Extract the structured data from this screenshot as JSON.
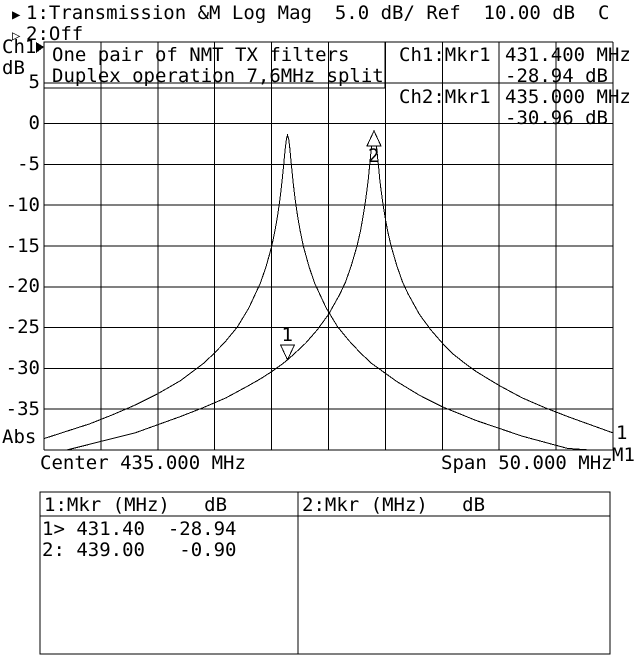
{
  "header": {
    "line1_indicator": "▶",
    "line1": "1:Transmission &M Log Mag  5.0 dB/ Ref  10.00 dB  C",
    "line2_indicator": "▷",
    "line2": "2:Off"
  },
  "axis": {
    "channel": "Ch1",
    "unit": "dB",
    "y_ticks": [
      "5",
      "0",
      "-5",
      "-10",
      "-15",
      "-20",
      "-25",
      "-30",
      "-35"
    ],
    "bottom_left_label": "Abs",
    "center_label": "Center 435.000 MHz",
    "span_label": "Span 50.000 MHz"
  },
  "annotation": {
    "line1": "One pair of NMT TX filters",
    "line2": "Duplex operation 7,6MHz split"
  },
  "marker_readout": [
    {
      "label": "Ch1:Mkr1",
      "freq": "431.400 MHz",
      "value": "-28.94 dB"
    },
    {
      "label": "Ch2:Mkr1",
      "freq": "435.000 MHz",
      "value": "-30.96 dB"
    }
  ],
  "trace_edge_labels": {
    "data": "1",
    "memory": "M1"
  },
  "marker_table": {
    "left_header": "1:Mkr (MHz)   dB",
    "right_header": "2:Mkr (MHz)   dB",
    "left_rows": [
      "1> 431.40  -28.94",
      "2: 439.00   -0.90"
    ],
    "right_rows": []
  },
  "chart_data": {
    "type": "line",
    "title": "",
    "x_range": [
      410,
      460
    ],
    "y_range": [
      -40,
      10
    ],
    "x_divisions": 10,
    "y_divisions": 10,
    "x_unit": "MHz",
    "y_unit": "dB",
    "reference_level_dB": 10.0,
    "scale_per_div_dB": 5.0,
    "center_MHz": 435.0,
    "span_MHz": 50.0,
    "series": [
      {
        "name": "1",
        "points": [
          [
            410,
            -40.6
          ],
          [
            412,
            -40.0
          ],
          [
            414,
            -39.3
          ],
          [
            416,
            -38.6
          ],
          [
            418,
            -37.9
          ],
          [
            420,
            -36.9
          ],
          [
            422,
            -35.9
          ],
          [
            424,
            -34.8
          ],
          [
            426,
            -33.6
          ],
          [
            428,
            -32.1
          ],
          [
            429,
            -31.3
          ],
          [
            430,
            -30.4
          ],
          [
            431,
            -29.4
          ],
          [
            431.4,
            -28.94
          ],
          [
            432,
            -28.2
          ],
          [
            433,
            -26.9
          ],
          [
            434,
            -25.3
          ],
          [
            435,
            -23.4
          ],
          [
            436,
            -20.9
          ],
          [
            436.5,
            -19.4
          ],
          [
            437,
            -17.4
          ],
          [
            437.5,
            -15.0
          ],
          [
            437.8,
            -13.2
          ],
          [
            438,
            -11.7
          ],
          [
            438.2,
            -10.0
          ],
          [
            438.4,
            -7.9
          ],
          [
            438.5,
            -6.8
          ],
          [
            438.6,
            -5.3
          ],
          [
            438.7,
            -3.9
          ],
          [
            438.8,
            -2.5
          ],
          [
            438.9,
            -1.4
          ],
          [
            439,
            -0.9
          ],
          [
            439.1,
            -1.4
          ],
          [
            439.2,
            -2.5
          ],
          [
            439.3,
            -3.9
          ],
          [
            439.4,
            -5.3
          ],
          [
            439.5,
            -6.8
          ],
          [
            439.6,
            -7.9
          ],
          [
            439.8,
            -10.0
          ],
          [
            440,
            -11.7
          ],
          [
            440.2,
            -13.2
          ],
          [
            440.5,
            -15.0
          ],
          [
            441,
            -17.4
          ],
          [
            441.5,
            -19.4
          ],
          [
            442,
            -20.9
          ],
          [
            443,
            -23.4
          ],
          [
            444,
            -25.3
          ],
          [
            445,
            -26.9
          ],
          [
            446,
            -28.3
          ],
          [
            447,
            -29.4
          ],
          [
            448,
            -30.4
          ],
          [
            450,
            -32.1
          ],
          [
            452,
            -33.6
          ],
          [
            454,
            -34.8
          ],
          [
            456,
            -35.9
          ],
          [
            458,
            -36.9
          ],
          [
            460,
            -37.9
          ]
        ]
      },
      {
        "name": "M1",
        "points": [
          [
            410,
            -38.6
          ],
          [
            412,
            -37.7
          ],
          [
            414,
            -36.8
          ],
          [
            416,
            -35.7
          ],
          [
            418,
            -34.5
          ],
          [
            420,
            -33.1
          ],
          [
            422,
            -31.5
          ],
          [
            424,
            -29.4
          ],
          [
            425,
            -28.1
          ],
          [
            426,
            -26.6
          ],
          [
            427,
            -24.9
          ],
          [
            428,
            -22.6
          ],
          [
            429,
            -19.6
          ],
          [
            429.5,
            -17.6
          ],
          [
            430,
            -15.1
          ],
          [
            430.3,
            -13.1
          ],
          [
            430.5,
            -11.5
          ],
          [
            430.7,
            -9.6
          ],
          [
            430.8,
            -8.5
          ],
          [
            430.9,
            -7.3
          ],
          [
            431.0,
            -5.9
          ],
          [
            431.1,
            -4.5
          ],
          [
            431.2,
            -3.0
          ],
          [
            431.3,
            -1.9
          ],
          [
            431.4,
            -1.4
          ],
          [
            431.5,
            -1.9
          ],
          [
            431.6,
            -3.0
          ],
          [
            431.7,
            -4.5
          ],
          [
            431.8,
            -5.9
          ],
          [
            431.9,
            -7.3
          ],
          [
            432.0,
            -8.5
          ],
          [
            432.1,
            -9.6
          ],
          [
            432.3,
            -11.5
          ],
          [
            432.5,
            -13.1
          ],
          [
            432.8,
            -15.1
          ],
          [
            433.3,
            -17.6
          ],
          [
            433.8,
            -19.6
          ],
          [
            434.8,
            -22.6
          ],
          [
            435.8,
            -24.9
          ],
          [
            436.8,
            -26.6
          ],
          [
            437.8,
            -28.1
          ],
          [
            438.8,
            -29.4
          ],
          [
            441,
            -31.6
          ],
          [
            443,
            -33.3
          ],
          [
            445,
            -34.7
          ],
          [
            448,
            -36.4
          ],
          [
            452,
            -38.3
          ],
          [
            456,
            -39.8
          ],
          [
            458,
            -40.5
          ],
          [
            460,
            -41.1
          ]
        ]
      }
    ],
    "markers": [
      {
        "id": "1",
        "x": 431.4,
        "y": -28.94,
        "symbol": "triangle-down"
      },
      {
        "id": "2",
        "x": 439.0,
        "y": -0.9,
        "symbol": "triangle-up"
      }
    ]
  }
}
